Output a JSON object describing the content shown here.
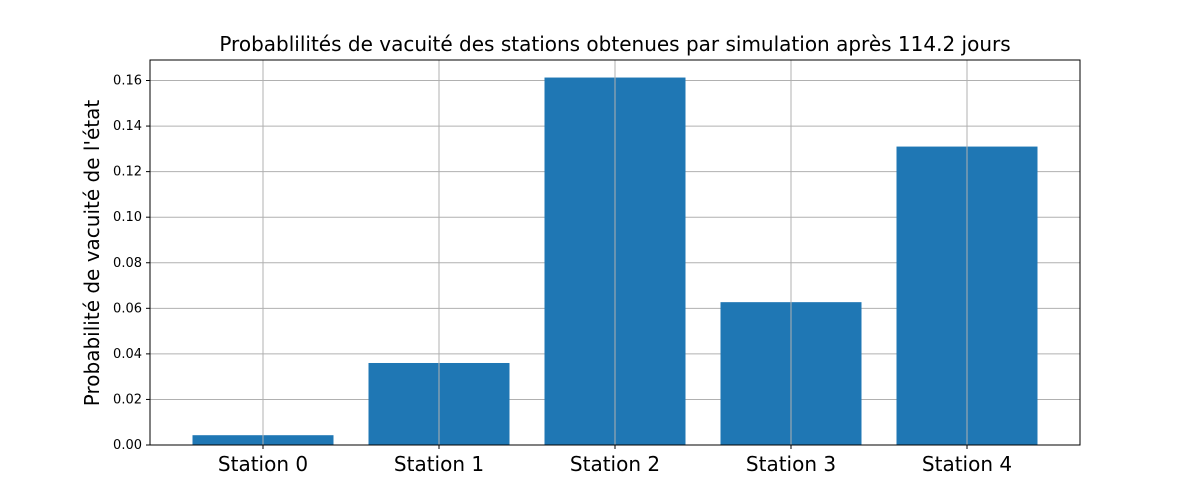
{
  "chart_data": {
    "type": "bar",
    "title": "Probablilités de vacuité des stations obtenues par simulation après 114.2 jours",
    "xlabel": "",
    "ylabel": "Probabilité de vacuité de l'état",
    "categories": [
      "Station 0",
      "Station 1",
      "Station 2",
      "Station 3",
      "Station 4"
    ],
    "values": [
      0.0043,
      0.036,
      0.1613,
      0.0627,
      0.131
    ],
    "ylim": [
      0,
      0.169
    ],
    "yticks": [
      "0.00",
      "0.02",
      "0.04",
      "0.06",
      "0.08",
      "0.10",
      "0.12",
      "0.14",
      "0.16"
    ],
    "ytick_values": [
      0,
      0.02,
      0.04,
      0.06,
      0.08,
      0.1,
      0.12,
      0.14,
      0.16
    ],
    "grid": true,
    "bar_color": "#1f77b4",
    "grid_color": "#b0b0b0"
  }
}
